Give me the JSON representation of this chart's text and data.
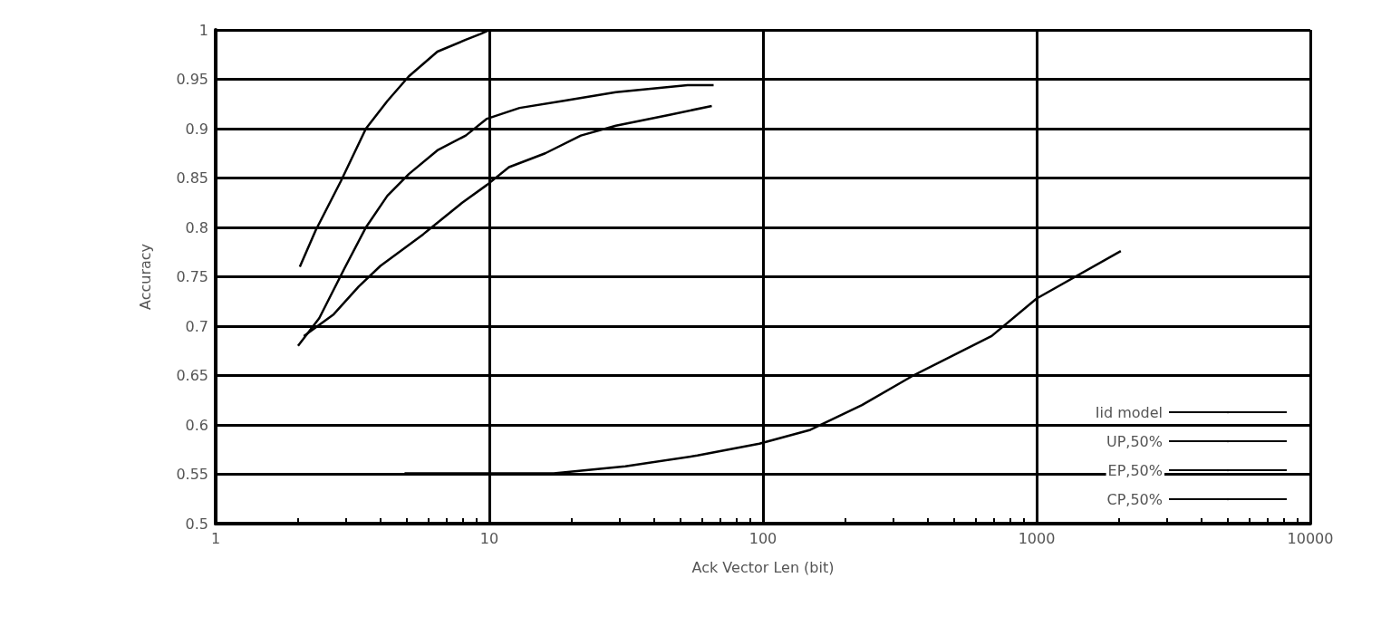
{
  "chart_data": {
    "type": "line",
    "xlabel": "Ack Vector Len (bit)",
    "ylabel": "Accuracy",
    "log": "x",
    "xlim": [
      1,
      10000
    ],
    "xticks": [
      1,
      10,
      100,
      1000,
      10000
    ],
    "ylim": [
      0.5,
      1
    ],
    "yticks": [
      0.5,
      0.55,
      0.6,
      0.65,
      0.7,
      0.75,
      0.8,
      0.85,
      0.9,
      0.95,
      1
    ],
    "grid": true,
    "legend": "bottom right",
    "line_style": "solid",
    "marker": "none",
    "series": [
      {
        "name": "Iid model",
        "color": "#000000",
        "x": [
          2.03,
          2.32,
          2.87,
          3.54,
          4.24,
          5.08,
          6.46,
          8.2,
          9.3,
          10
        ],
        "values": [
          0.76,
          0.797,
          0.847,
          0.9,
          0.928,
          0.953,
          0.978,
          0.99,
          0.996,
          1
        ]
      },
      {
        "name": "UP,50%",
        "color": "#000000",
        "x": [
          2,
          2.39,
          2.95,
          3.54,
          4.24,
          5.08,
          6.46,
          8.2,
          9.8,
          12.9,
          18.5,
          29,
          53,
          66
        ],
        "values": [
          0.68,
          0.708,
          0.758,
          0.8,
          0.832,
          0.854,
          0.878,
          0.893,
          0.91,
          0.921,
          0.928,
          0.937,
          0.944,
          0.944
        ]
      },
      {
        "name": "EP,50%",
        "color": "#000000",
        "x": [
          2.1,
          2.7,
          3.33,
          4,
          5.73,
          7.96,
          9.8,
          11.8,
          16,
          21.6,
          29,
          45.6,
          65
        ],
        "values": [
          0.69,
          0.712,
          0.74,
          0.761,
          0.793,
          0.825,
          0.843,
          0.861,
          0.875,
          0.893,
          0.903,
          0.914,
          0.923
        ]
      },
      {
        "name": "CP,50%",
        "color": "#000000",
        "x": [
          4.9,
          17.2,
          31.4,
          57.6,
          97,
          149,
          230,
          354,
          685,
          1000,
          2030
        ],
        "values": [
          0.551,
          0.551,
          0.558,
          0.569,
          0.581,
          0.595,
          0.62,
          0.65,
          0.69,
          0.728,
          0.776
        ]
      }
    ]
  }
}
